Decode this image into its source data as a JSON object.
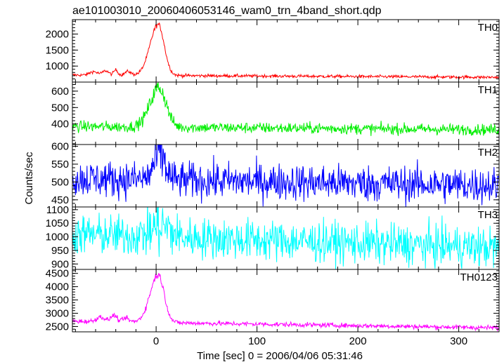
{
  "chart_data": {
    "type": "line",
    "title": "ae101003010_20060406053146_wam0_trn_4band_short.qdp",
    "xlabel": "Time [sec] 0 = 2006/04/06 05:31:46",
    "ylabel": "Counts/sec",
    "xlim": [
      -83,
      340
    ],
    "x_ticks": [
      0,
      100,
      200,
      300
    ],
    "grid": false,
    "panels": [
      {
        "name": "TH0",
        "color": "#ff0000",
        "ylim": [
          500,
          2450
        ],
        "y_ticks": [
          1000,
          1500,
          2000
        ],
        "peak_time": 2,
        "peak_value": 2300,
        "baseline_start": 720,
        "baseline_end": 650,
        "noise": 25,
        "rise_tau": 8,
        "decay_tau": 6,
        "pre_bumps": [
          [
            -62,
            110,
            4
          ],
          [
            -50,
            140,
            3
          ],
          [
            -40,
            170,
            2
          ],
          [
            -28,
            120,
            3
          ]
        ]
      },
      {
        "name": "TH1",
        "color": "#00ee00",
        "ylim": [
          275,
          655
        ],
        "y_ticks": [
          400,
          500,
          600
        ],
        "peak_time": 3,
        "peak_value": 620,
        "baseline_start": 385,
        "baseline_end": 365,
        "noise": 17,
        "rise_tau": 9,
        "decay_tau": 7,
        "pre_bumps": []
      },
      {
        "name": "TH2",
        "color": "#0000ff",
        "ylim": [
          430,
          605
        ],
        "y_ticks": [
          450,
          500,
          550,
          600
        ],
        "peak_time": 4,
        "peak_value": 580,
        "baseline_start": 510,
        "baseline_end": 490,
        "noise": 26,
        "rise_tau": 6,
        "decay_tau": 5,
        "pre_bumps": []
      },
      {
        "name": "TH3",
        "color": "#00ffff",
        "ylim": [
          880,
          1110
        ],
        "y_ticks": [
          900,
          950,
          1000,
          1050,
          1100
        ],
        "peak_time": 5,
        "peak_value": 1040,
        "baseline_start": 1010,
        "baseline_end": 960,
        "noise": 38,
        "rise_tau": 10,
        "decay_tau": 8,
        "pre_bumps": []
      },
      {
        "name": "TH0123",
        "color": "#ff00ff",
        "ylim": [
          2300,
          4650
        ],
        "y_ticks": [
          2500,
          3000,
          3500,
          4000,
          4500
        ],
        "peak_time": 2,
        "peak_value": 4450,
        "baseline_start": 2700,
        "baseline_end": 2450,
        "noise": 45,
        "rise_tau": 8,
        "decay_tau": 6,
        "pre_bumps": [
          [
            -55,
            180,
            4
          ],
          [
            -42,
            250,
            3
          ],
          [
            -30,
            150,
            3
          ]
        ]
      }
    ]
  }
}
